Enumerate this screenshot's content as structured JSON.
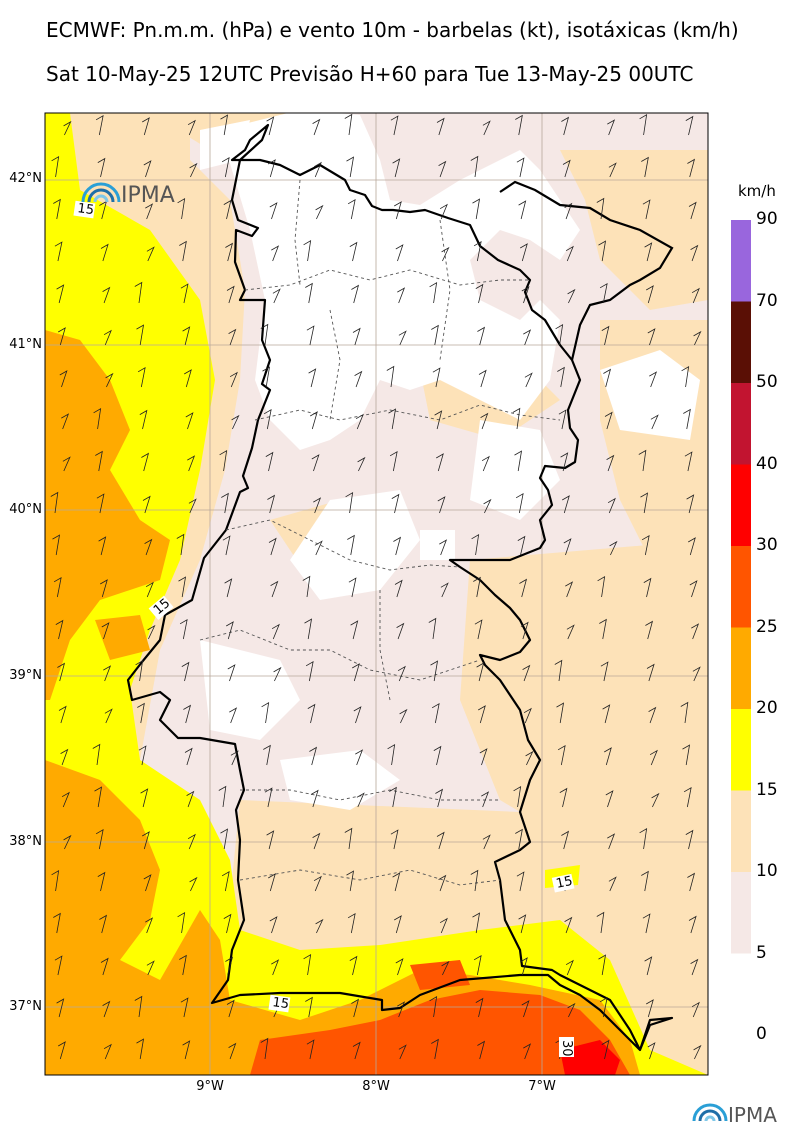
{
  "header": {
    "title_line1": "ECMWF: Pn.m.m. (hPa) e vento 10m - barbelas (kt), isotáxicas (km/h)",
    "title_line2": "Sat 10-May-25 12UTC Previsão H+60 para Tue 13-May-25 00UTC"
  },
  "map": {
    "lat_labels": [
      "42°N",
      "41°N",
      "40°N",
      "39°N",
      "38°N",
      "37°N"
    ],
    "lon_labels": [
      "9°W",
      "8°W",
      "7°W"
    ],
    "contour_labels": [
      "15",
      "15",
      "15",
      "15",
      "30"
    ],
    "logo_text": "IPMA"
  },
  "colorbar": {
    "unit": "km/h",
    "levels": [
      "90",
      "70",
      "50",
      "40",
      "30",
      "25",
      "20",
      "15",
      "10",
      "5",
      "0"
    ],
    "colors": [
      "#9966dd",
      "#5a0f05",
      "#c21430",
      "#ff0000",
      "#ff5500",
      "#ffaa00",
      "#ffff00",
      "#fde2b8",
      "#f5e8e6"
    ]
  },
  "footer": {
    "logo_text": "IPMA"
  }
}
